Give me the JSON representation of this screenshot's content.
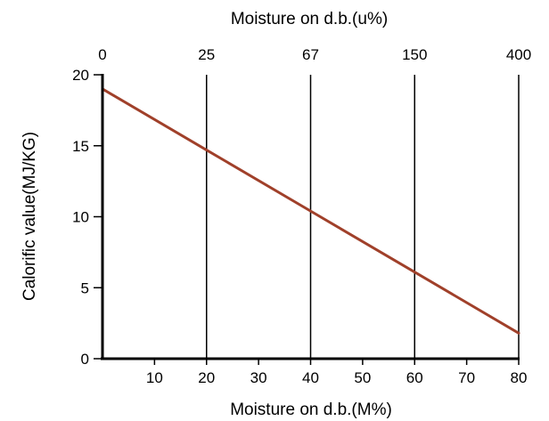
{
  "chart_data": {
    "type": "line",
    "title": "",
    "xlabel": "Moisture on d.b.(M%)",
    "ylabel": "Calorific value(MJ/KG)",
    "top_axis_label": "Moisture on d.b.(u%)",
    "xlim": [
      0,
      80
    ],
    "ylim": [
      0,
      20
    ],
    "x_ticks": [
      "10",
      "20",
      "30",
      "40",
      "50",
      "60",
      "70",
      "80"
    ],
    "y_ticks": [
      "0",
      "5",
      "10",
      "15",
      "20"
    ],
    "top_ticks": [
      {
        "x": 0,
        "label": "0"
      },
      {
        "x": 20,
        "label": "25"
      },
      {
        "x": 40,
        "label": "67"
      },
      {
        "x": 60,
        "label": "150"
      },
      {
        "x": 80,
        "label": "400"
      }
    ],
    "reference_lines_x": [
      20,
      40,
      60,
      80
    ],
    "series": [
      {
        "color": "#a0402a",
        "x": [
          0,
          20,
          40,
          60,
          80
        ],
        "y": [
          19.0,
          14.7,
          10.4,
          6.1,
          1.8
        ]
      }
    ],
    "grid": false
  }
}
